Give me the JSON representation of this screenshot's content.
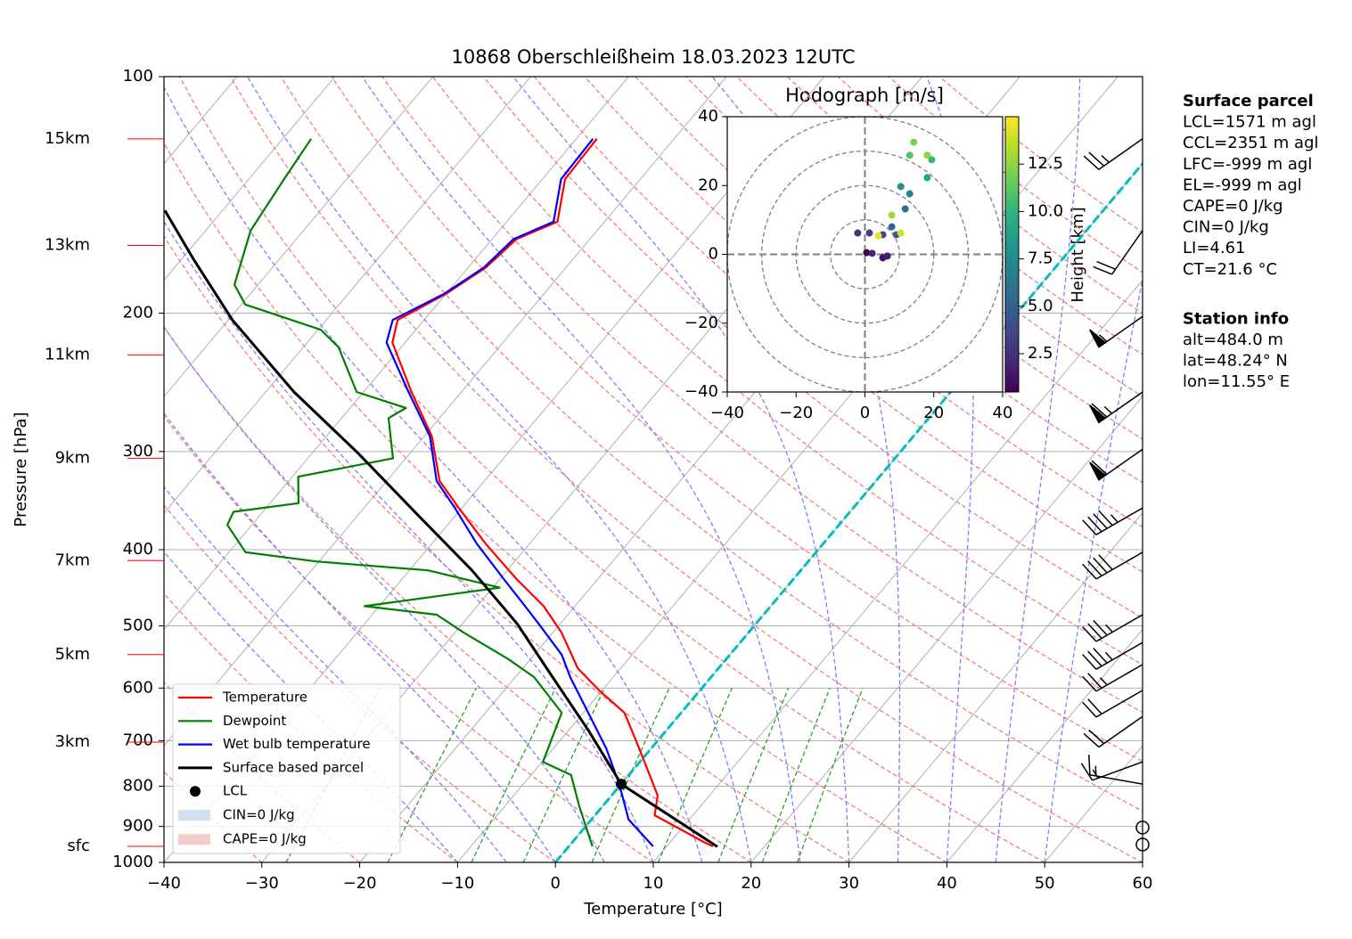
{
  "chart_data": {
    "type": "skewt",
    "title": "10868 Oberschleißheim 18.03.2023 12UTC",
    "xlabel": "Temperature [°C]",
    "ylabel": "Pressure [hPa]",
    "xlim": [
      -40,
      60
    ],
    "xticks": [
      {
        "value": -40,
        "label": "−40"
      },
      {
        "value": -30,
        "label": "−30"
      },
      {
        "value": -20,
        "label": "−20"
      },
      {
        "value": -10,
        "label": "−10"
      },
      0,
      10,
      20,
      30,
      40,
      50,
      60
    ],
    "ylim": [
      1000,
      100
    ],
    "yticks": [
      100,
      200,
      300,
      400,
      500,
      600,
      700,
      800,
      900,
      1000
    ],
    "log_y": true,
    "grid": true,
    "height_tick_color": "#ff0000",
    "height_ticks": [
      {
        "value": 120,
        "label": "15km"
      },
      {
        "value": 164,
        "label": "13km"
      },
      {
        "value": 226,
        "label": "11km"
      },
      {
        "value": 306,
        "label": "9km"
      },
      {
        "value": 413,
        "label": "7km"
      },
      {
        "value": 544,
        "label": "5km"
      },
      {
        "value": 703,
        "label": "3km"
      },
      {
        "value": 954,
        "label": "sfc"
      }
    ],
    "highlight_isotherm": {
      "value": 0,
      "color": "#00bfbf"
    },
    "series": [
      {
        "name": "Temperature",
        "color": "#ff0000",
        "pressure": [
          954,
          942,
          871,
          822,
          754,
          697,
          645,
          604,
          566,
          510,
          472,
          436,
          393,
          354,
          327,
          287,
          252,
          218,
          204,
          189,
          175,
          161,
          153,
          135,
          120
        ],
        "values": [
          14.7,
          13.4,
          6.1,
          4.7,
          1.0,
          -2.4,
          -5.8,
          -10.3,
          -14.4,
          -19.1,
          -23.2,
          -28.3,
          -34.5,
          -40.3,
          -44.6,
          -49.2,
          -55.1,
          -61.3,
          -62.7,
          -60.0,
          -58.2,
          -57.5,
          -54.8,
          -57.7,
          -57.9
        ]
      },
      {
        "name": "Dewpoint",
        "color": "#008000",
        "pressure": [
          954,
          848,
          774,
          745,
          645,
          581,
          551,
          510,
          484,
          472,
          447,
          425,
          414,
          403,
          372,
          358,
          349,
          323,
          306,
          272,
          264,
          252,
          221,
          210,
          195,
          184,
          157,
          135,
          120
        ],
        "values": [
          2.4,
          -2.4,
          -5.9,
          -9.9,
          -12.2,
          -18.1,
          -22.3,
          -29.1,
          -33.4,
          -41.5,
          -29.3,
          -38.1,
          -50.3,
          -58.3,
          -62.5,
          -63.0,
          -57.1,
          -59.4,
          -51.3,
          -55.2,
          -54.3,
          -60.7,
          -66.4,
          -69.7,
          -79.6,
          -82.4,
          -85.4,
          -86.4,
          -87.1
        ]
      },
      {
        "name": "Wet bulb temperature",
        "color": "#0000ff",
        "pressure": [
          954,
          882,
          795,
          716,
          645,
          581,
          544,
          497,
          472,
          436,
          393,
          354,
          327,
          287,
          252,
          218,
          204,
          189,
          175,
          161,
          153,
          135,
          120
        ],
        "values": [
          8.6,
          3.8,
          -0.2,
          -4.6,
          -9.5,
          -14.4,
          -17.2,
          -22.2,
          -25.1,
          -29.6,
          -35.4,
          -40.7,
          -44.9,
          -49.4,
          -55.4,
          -61.9,
          -63.2,
          -60.2,
          -58.4,
          -57.8,
          -55.2,
          -58.1,
          -58.3
        ]
      },
      {
        "name": "Surface based parcel",
        "color": "#000000",
        "pressure": [
          955,
          795,
          680,
          581,
          497,
          425,
          363,
          301,
          252,
          204,
          170,
          148
        ],
        "values": [
          15.2,
          0.0,
          -7.9,
          -16.2,
          -24.4,
          -33.6,
          -43.6,
          -55.4,
          -67.1,
          -79.6,
          -89.0,
          -95.9
        ]
      }
    ],
    "lcl": {
      "name": "LCL",
      "pressure": 795,
      "value": 0.0,
      "color": "#000000"
    },
    "cin": {
      "name": "CIN=0 J/kg",
      "color": "#d0e0ee"
    },
    "cape": {
      "name": "CAPE=0 J/kg",
      "color": "#f5cccc"
    },
    "wind": {
      "pressure": [
        120,
        157,
        202,
        252,
        298,
        354,
        403,
        484,
        525,
        560,
        604,
        652,
        745,
        795,
        903,
        949
      ],
      "speed": [
        25,
        20,
        55,
        65,
        60,
        45,
        40,
        35,
        35,
        25,
        20,
        20,
        15,
        15,
        0,
        0
      ],
      "direction": [
        235,
        215,
        235,
        235,
        235,
        240,
        240,
        240,
        240,
        240,
        240,
        235,
        250,
        280,
        0,
        0
      ]
    },
    "hodograph": {
      "type": "scatter",
      "title": "Hodograph [m/s]",
      "xlim": [
        -40,
        40
      ],
      "ylim": [
        -40,
        40
      ],
      "xticks": [
        {
          "value": -40,
          "label": "−40"
        },
        {
          "value": -20,
          "label": "−20"
        },
        0,
        20,
        40
      ],
      "yticks": [
        {
          "value": -40,
          "label": "−40"
        },
        {
          "value": -20,
          "label": "−20"
        },
        0,
        20,
        40
      ],
      "u": [
        0.5,
        5.2,
        6.5,
        2.1,
        -2.1,
        1.3,
        5.2,
        9.1,
        7.8,
        11.7,
        13.0,
        10.4,
        18.1,
        19.4,
        13.0,
        14.2,
        18.1,
        7.8,
        10.4,
        3.9
      ],
      "v": [
        0.5,
        -1.0,
        -0.5,
        0.3,
        6.2,
        6.2,
        5.7,
        5.7,
        8.0,
        13.2,
        17.6,
        19.7,
        22.3,
        27.5,
        28.8,
        32.6,
        28.8,
        11.4,
        6.2,
        5.4
      ],
      "height": [
        0.5,
        1.0,
        1.5,
        2.0,
        2.5,
        3.0,
        3.5,
        4.5,
        5.0,
        6.0,
        7.0,
        8.0,
        9.0,
        10.0,
        11.0,
        12.0,
        12.5,
        13.0,
        14.0,
        14.5
      ],
      "colorbar": {
        "label": "Height [km]",
        "lim": [
          0.48,
          15.0
        ],
        "ticks": [
          2.5,
          {
            "value": 5,
            "label": "5.0"
          },
          {
            "value": 7.5,
            "label": "7.5"
          },
          {
            "value": 10,
            "label": "10.0"
          },
          12.5
        ]
      }
    },
    "info_panel": [
      {
        "title": "Surface parcel",
        "lines": [
          "LCL=1571 m agl",
          "CCL=2351 m agl",
          "LFC=-999 m agl",
          "EL=-999 m agl",
          "CAPE=0 J/kg",
          "CIN=0 J/kg",
          "LI=4.61",
          "CT=21.6 °C"
        ]
      },
      {
        "title": "Station info",
        "lines": [
          "alt=484.0 m",
          "lat=48.24° N",
          "lon=11.55° E"
        ]
      }
    ]
  }
}
